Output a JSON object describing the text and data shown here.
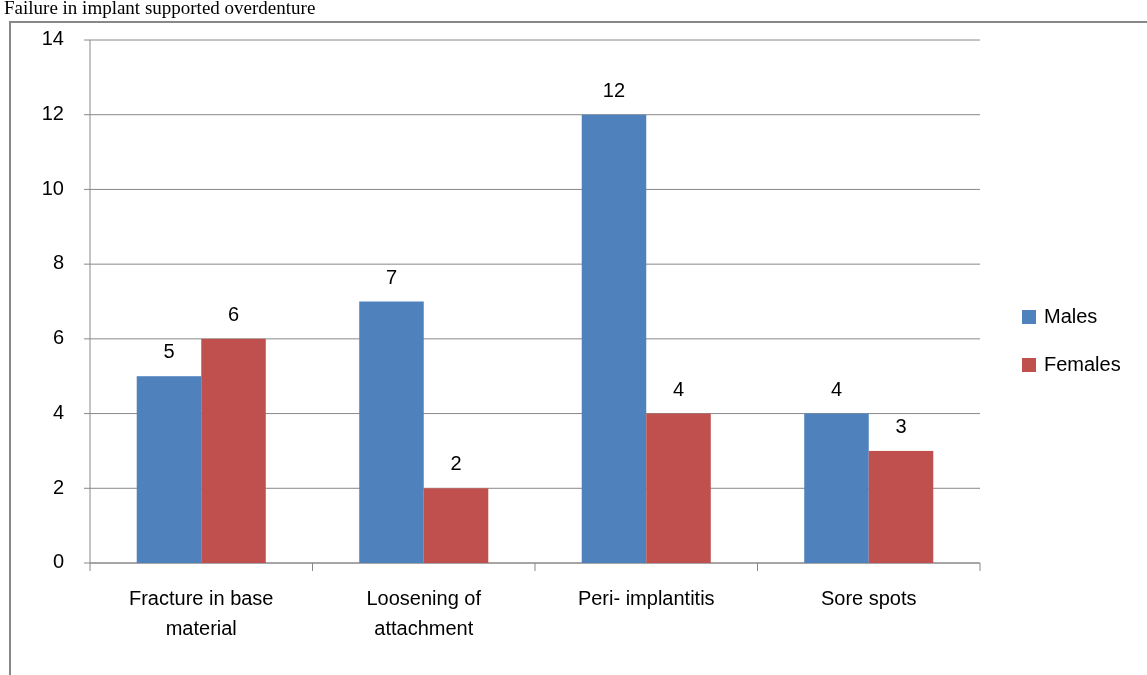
{
  "chart_data": {
    "type": "bar",
    "title": "Failure in implant supported overdenture",
    "categories": [
      "Fracture in base material",
      "Loosening of attachment",
      "Peri- implantitis",
      "Sore spots"
    ],
    "series": [
      {
        "name": "Males",
        "color": "#4f81bd",
        "values": [
          5,
          7,
          12,
          4
        ]
      },
      {
        "name": "Females",
        "color": "#c0504d",
        "values": [
          6,
          2,
          4,
          3
        ]
      }
    ],
    "ylim": [
      0,
      14
    ],
    "yticks": [
      0,
      2,
      4,
      6,
      8,
      10,
      12,
      14
    ],
    "grid": "y",
    "legend": "right",
    "data_labels": true
  }
}
